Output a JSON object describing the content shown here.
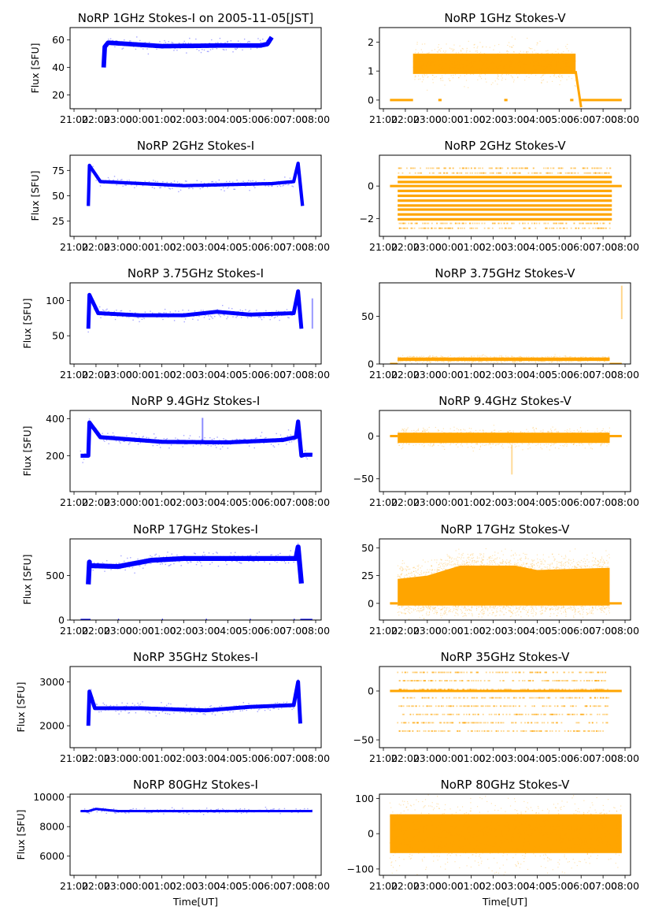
{
  "figure": {
    "date_note": "2005-11-05[JST]",
    "xlabel": "Time[UT]",
    "ylabel": "Flux [SFU]"
  },
  "colors": {
    "stokes_i": "#0000ff",
    "stokes_v": "#ffa500"
  },
  "x_ticks": [
    "21:00",
    "22:00",
    "23:00",
    "00:00",
    "01:00",
    "02:00",
    "03:00",
    "04:00",
    "05:00",
    "06:00",
    "07:00",
    "08:00"
  ],
  "chart_data": [
    {
      "type": "scatter",
      "title": "NoRP 1GHz Stokes-I on 2005-11-05[JST]",
      "xlabel": "",
      "ylabel": "Flux [SFU]",
      "ylim": [
        10,
        69
      ],
      "yticks": [
        20,
        40,
        60
      ],
      "color": "#0000ff",
      "xlim_hours_from_2100": [
        -0.18,
        11.25
      ],
      "series": [
        {
          "name": "Stokes-I 1GHz",
          "segments": [
            [
              1.35,
              40,
              1.4,
              55
            ],
            [
              1.55,
              58,
              4,
              55.5
            ],
            [
              4,
              55.5,
              7,
              56
            ],
            [
              7,
              56,
              8.5,
              56
            ],
            [
              8.5,
              56,
              8.8,
              57
            ],
            [
              8.8,
              57,
              9,
              62
            ]
          ],
          "spread": 1.5,
          "start": 1.35,
          "end": 9.0
        }
      ]
    },
    {
      "type": "scatter",
      "title": "NoRP 1GHz Stokes-V",
      "xlabel": "",
      "ylabel": "",
      "ylim": [
        -0.3,
        2.5
      ],
      "yticks": [
        0,
        1,
        2
      ],
      "color": "#ffa500",
      "xlim_hours_from_2100": [
        -0.18,
        11.25
      ],
      "series": [
        {
          "name": "Stokes-V 1GHz",
          "band": {
            "start": 1.35,
            "end": 8.75,
            "center": 1.25,
            "spread": 0.35
          },
          "zero_segments": [
            [
              0.3,
              1.35
            ],
            [
              2.5,
              2.65
            ],
            [
              5.5,
              5.65
            ],
            [
              8.5,
              8.65
            ],
            [
              9.0,
              10.85
            ]
          ],
          "drop": [
            8.75,
            9.0,
            1.0,
            -0.25
          ]
        }
      ]
    },
    {
      "type": "scatter",
      "title": "NoRP 2GHz Stokes-I",
      "xlabel": "",
      "ylabel": "Flux [SFU]",
      "ylim": [
        10,
        90
      ],
      "yticks": [
        25,
        50,
        75
      ],
      "color": "#0000ff",
      "xlim_hours_from_2100": [
        -0.18,
        11.25
      ],
      "series": [
        {
          "name": "Stokes-I 2GHz",
          "segments": [
            [
              0.65,
              40,
              0.7,
              80
            ],
            [
              0.7,
              80,
              1.2,
              64
            ],
            [
              1.2,
              64,
              5,
              60
            ],
            [
              5,
              60,
              9,
              62
            ],
            [
              9,
              62,
              10,
              64
            ],
            [
              10,
              64,
              10.2,
              82
            ],
            [
              10.2,
              82,
              10.4,
              40
            ]
          ],
          "spread": 1.5,
          "start": 0.65,
          "end": 10.4
        }
      ]
    },
    {
      "type": "scatter",
      "title": "NoRP 2GHz Stokes-V",
      "xlabel": "",
      "ylabel": "",
      "ylim": [
        -3.1,
        1.9
      ],
      "yticks": [
        -2,
        0
      ],
      "color": "#ffa500",
      "xlim_hours_from_2100": [
        -0.18,
        11.25
      ],
      "series": [
        {
          "name": "Stokes-V 2GHz",
          "levels": [
            1.1,
            0.8,
            0.55,
            0.25,
            -0.3,
            -0.6,
            -0.9,
            -1.2,
            -1.45,
            -1.75,
            -2.05,
            -2.3,
            -2.6
          ],
          "start": 0.65,
          "end": 10.4,
          "zero_line": [
            0.3,
            10.85
          ]
        }
      ]
    },
    {
      "type": "scatter",
      "title": "NoRP 3.75GHz Stokes-I",
      "xlabel": "",
      "ylabel": "Flux [SFU]",
      "ylim": [
        10,
        125
      ],
      "yticks": [
        50,
        100
      ],
      "color": "#0000ff",
      "xlim_hours_from_2100": [
        -0.18,
        11.25
      ],
      "series": [
        {
          "name": "Stokes-I 3.75GHz",
          "segments": [
            [
              0.65,
              60,
              0.7,
              108
            ],
            [
              0.7,
              108,
              1.1,
              82
            ],
            [
              1.1,
              82,
              3,
              79
            ],
            [
              3,
              79,
              5,
              79
            ],
            [
              5,
              79,
              6.5,
              84
            ],
            [
              6.5,
              84,
              8,
              80
            ],
            [
              8,
              80,
              10,
              82
            ],
            [
              10,
              82,
              10.2,
              113
            ],
            [
              10.2,
              113,
              10.35,
              60
            ]
          ],
          "spread": 2.5,
          "start": 0.65,
          "end": 10.35,
          "outlier": [
            10.85,
            60,
            103
          ]
        }
      ]
    },
    {
      "type": "scatter",
      "title": "NoRP 3.75GHz Stokes-V",
      "xlabel": "",
      "ylabel": "",
      "ylim": [
        0,
        85
      ],
      "yticks": [
        0,
        50
      ],
      "color": "#ffa500",
      "xlim_hours_from_2100": [
        -0.18,
        11.25
      ],
      "series": [
        {
          "name": "Stokes-V 3.75GHz",
          "band": {
            "start": 0.65,
            "end": 10.3,
            "center": 5,
            "spread": 1.8
          },
          "zero_segments": [
            [
              0.3,
              0.65
            ],
            [
              10.3,
              10.85
            ]
          ],
          "outlier": [
            10.85,
            47,
            82
          ]
        }
      ]
    },
    {
      "type": "scatter",
      "title": "NoRP 9.4GHz Stokes-I",
      "xlabel": "",
      "ylabel": "Flux [SFU]",
      "ylim": [
        5,
        445
      ],
      "yticks": [
        200,
        400
      ],
      "color": "#0000ff",
      "xlim_hours_from_2100": [
        -0.18,
        11.25
      ],
      "series": [
        {
          "name": "Stokes-I 9.4GHz",
          "segments": [
            [
              0.3,
              200,
              0.5,
              200
            ],
            [
              0.65,
              200,
              0.7,
              380
            ],
            [
              0.7,
              380,
              1.2,
              300
            ],
            [
              1.2,
              300,
              4,
              275
            ],
            [
              4,
              275,
              7,
              272
            ],
            [
              7,
              272,
              9.5,
              285
            ],
            [
              9.5,
              285,
              10.1,
              300
            ],
            [
              10.1,
              300,
              10.2,
              385
            ],
            [
              10.2,
              385,
              10.35,
              200
            ],
            [
              10.5,
              205,
              10.85,
              205
            ]
          ],
          "spread": 10,
          "start": 0.3,
          "end": 10.85,
          "spike": [
            5.85,
            270,
            405
          ]
        }
      ]
    },
    {
      "type": "scatter",
      "title": "NoRP 9.4GHz Stokes-V",
      "xlabel": "",
      "ylabel": "",
      "ylim": [
        -65,
        30
      ],
      "yticks": [
        -50,
        0
      ],
      "color": "#ffa500",
      "xlim_hours_from_2100": [
        -0.18,
        11.25
      ],
      "series": [
        {
          "name": "Stokes-V 9.4GHz",
          "band": {
            "start": 0.65,
            "end": 10.3,
            "center": -2,
            "spread": 6
          },
          "zero_segments": [
            [
              0.3,
              0.65
            ],
            [
              10.3,
              10.85
            ]
          ],
          "spike": [
            5.85,
            -45,
            -10
          ]
        }
      ]
    },
    {
      "type": "scatter",
      "title": "NoRP 17GHz Stokes-I",
      "xlabel": "",
      "ylabel": "Flux [SFU]",
      "ylim": [
        0,
        910
      ],
      "yticks": [
        0,
        500
      ],
      "color": "#0000ff",
      "xlim_hours_from_2100": [
        -0.18,
        11.25
      ],
      "series": [
        {
          "name": "Stokes-I 17GHz",
          "segments": [
            [
              0.65,
              400,
              0.7,
              650
            ],
            [
              0.7,
              610,
              2,
              600
            ],
            [
              2,
              600,
              3.5,
              670
            ],
            [
              3.5,
              670,
              5,
              690
            ],
            [
              5,
              690,
              10.1,
              690
            ],
            [
              10.1,
              690,
              10.2,
              820
            ],
            [
              10.2,
              820,
              10.35,
              410
            ]
          ],
          "spread": 25,
          "start": 0.65,
          "end": 10.35,
          "zero_segments": [
            [
              0.3,
              0.75
            ],
            [
              2,
              2.05
            ],
            [
              4,
              4.05
            ],
            [
              6,
              6.05
            ],
            [
              8,
              8.05
            ],
            [
              10,
              10.05
            ],
            [
              10.3,
              10.85
            ]
          ]
        }
      ]
    },
    {
      "type": "scatter",
      "title": "NoRP 17GHz Stokes-V",
      "xlabel": "",
      "ylabel": "",
      "ylim": [
        -15,
        58
      ],
      "yticks": [
        0,
        25,
        50
      ],
      "color": "#ffa500",
      "xlim_hours_from_2100": [
        -0.18,
        11.25
      ],
      "series": [
        {
          "name": "Stokes-V 17GHz",
          "band": {
            "start": 0.65,
            "end": 10.3,
            "center": 15,
            "spread": 15,
            "top_profile": [
              [
                0.65,
                30
              ],
              [
                2,
                33
              ],
              [
                3.5,
                42
              ],
              [
                6,
                42
              ],
              [
                7,
                38
              ],
              [
                10.3,
                40
              ]
            ]
          },
          "zero_segments": [
            [
              0.3,
              0.65
            ],
            [
              10.3,
              10.85
            ]
          ]
        }
      ]
    },
    {
      "type": "scatter",
      "title": "NoRP 35GHz Stokes-I",
      "xlabel": "",
      "ylabel": "Flux [SFU]",
      "ylim": [
        1500,
        3350
      ],
      "yticks": [
        2000,
        3000
      ],
      "color": "#0000ff",
      "xlim_hours_from_2100": [
        -0.18,
        11.25
      ],
      "series": [
        {
          "name": "Stokes-I 35GHz",
          "segments": [
            [
              0.65,
              2000,
              0.7,
              2780
            ],
            [
              0.7,
              2780,
              0.95,
              2400
            ],
            [
              0.95,
              2400,
              3,
              2400
            ],
            [
              3,
              2400,
              6,
              2350
            ],
            [
              6,
              2350,
              8,
              2430
            ],
            [
              8,
              2430,
              10,
              2470
            ],
            [
              10,
              2470,
              10.2,
              3000
            ],
            [
              10.2,
              3000,
              10.3,
              2050
            ]
          ],
          "spread": 40,
          "start": 0.65,
          "end": 10.3
        }
      ]
    },
    {
      "type": "scatter",
      "title": "NoRP 35GHz Stokes-V",
      "xlabel": "",
      "ylabel": "",
      "ylim": [
        -58,
        25
      ],
      "yticks": [
        -50,
        0
      ],
      "color": "#ffa500",
      "xlim_hours_from_2100": [
        -0.18,
        11.25
      ],
      "series": [
        {
          "name": "Stokes-V 35GHz",
          "levels": [
            19,
            10.5,
            1.5,
            -7,
            -15.5,
            -24,
            -32.5,
            -41
          ],
          "faint_levels": [
            19,
            -41
          ],
          "start": 0.65,
          "end": 10.3,
          "zero_line": [
            0.3,
            10.85
          ]
        }
      ]
    },
    {
      "type": "scatter",
      "title": "NoRP 80GHz Stokes-I",
      "xlabel": "Time[UT]",
      "ylabel": "Flux [SFU]",
      "ylim": [
        4700,
        10200
      ],
      "yticks": [
        6000,
        8000,
        10000
      ],
      "color": "#0000ff",
      "xlim_hours_from_2100": [
        -0.18,
        11.25
      ],
      "series": [
        {
          "name": "Stokes-I 80GHz",
          "segments": [
            [
              0.3,
              9050,
              0.65,
              9050
            ],
            [
              0.65,
              9050,
              1,
              9200
            ],
            [
              1,
              9200,
              2,
              9050
            ],
            [
              2,
              9050,
              10.85,
              9050
            ]
          ],
          "spread": 60,
          "start": 0.3,
          "end": 10.85
        }
      ]
    },
    {
      "type": "scatter",
      "title": "NoRP 80GHz Stokes-V",
      "xlabel": "Time[UT]",
      "ylabel": "",
      "ylim": [
        -118,
        112
      ],
      "yticks": [
        -100,
        0,
        100
      ],
      "color": "#ffa500",
      "xlim_hours_from_2100": [
        -0.18,
        11.25
      ],
      "series": [
        {
          "name": "Stokes-V 80GHz",
          "band": {
            "start": 0.3,
            "end": 10.85,
            "center": 0,
            "spread": 55
          }
        }
      ]
    }
  ]
}
